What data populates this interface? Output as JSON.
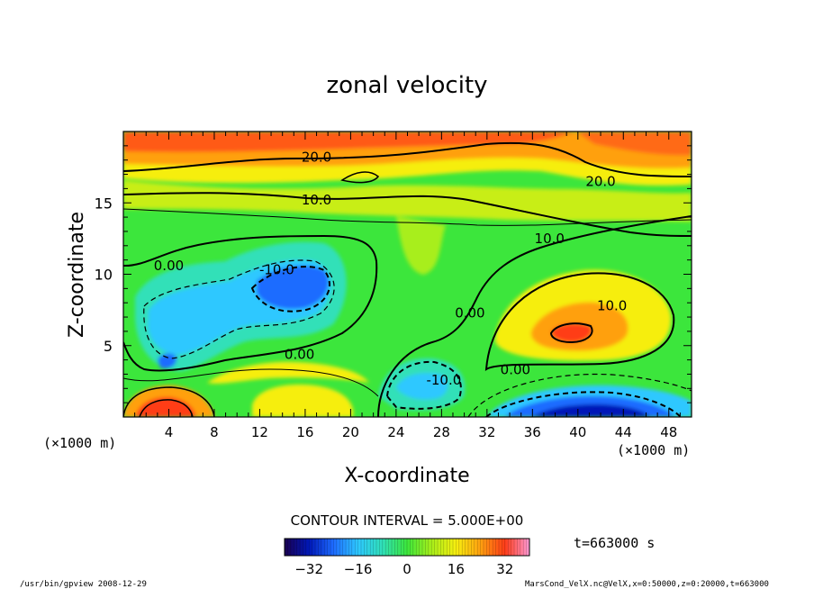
{
  "chart_data": {
    "type": "heatmap",
    "title": "zonal velocity",
    "xlabel": "X-coordinate",
    "ylabel": "Z-coordinate",
    "x_unit_label": "(×1000 m)",
    "z_unit_label": "(×1000 m)",
    "x_ticks": [
      4,
      8,
      12,
      16,
      20,
      24,
      28,
      32,
      36,
      40,
      44,
      48
    ],
    "z_ticks": [
      5,
      10,
      15
    ],
    "xlim": [
      0,
      50
    ],
    "zlim": [
      0,
      20
    ],
    "contour_interval_label": "CONTOUR INTERVAL = 5.000E+00",
    "contour_labels": [
      {
        "text": "20.0",
        "x": 17,
        "z": 18.2
      },
      {
        "text": "20.0",
        "x": 42,
        "z": 16.5
      },
      {
        "text": "10.0",
        "x": 17,
        "z": 15.2
      },
      {
        "text": "10.0",
        "x": 37.5,
        "z": 12.5
      },
      {
        "text": "10.0",
        "x": 43,
        "z": 7.8
      },
      {
        "text": "-10.0",
        "x": 13.5,
        "z": 10.3
      },
      {
        "text": "0.00",
        "x": 4,
        "z": 10.6
      },
      {
        "text": "0.00",
        "x": 15.5,
        "z": 4.4
      },
      {
        "text": "0.00",
        "x": 30.5,
        "z": 7.3
      },
      {
        "text": "0.00",
        "x": 34.5,
        "z": 3.3
      },
      {
        "text": "-10.0",
        "x": 28.2,
        "z": 2.6
      }
    ],
    "field_features": [
      {
        "kind": "max",
        "x": 3.5,
        "z": 0.5,
        "value": 30
      },
      {
        "kind": "max",
        "x": 39.5,
        "z": 6.0,
        "value": 22
      },
      {
        "kind": "max",
        "x": 10,
        "z": 19.5,
        "value": 28
      },
      {
        "kind": "min",
        "x": 15.5,
        "z": 9.5,
        "value": -16
      },
      {
        "kind": "min",
        "x": 4,
        "z": 4,
        "value": -15
      },
      {
        "kind": "min",
        "x": 40,
        "z": 0,
        "value": -32
      },
      {
        "kind": "min",
        "x": 28,
        "z": 2.3,
        "value": -12
      }
    ],
    "colorbar": {
      "ticks": [
        -32,
        -16,
        0,
        16,
        32
      ],
      "range": [
        -40,
        40
      ],
      "colors": [
        "#1a0050",
        "#0018b8",
        "#1e6cff",
        "#2ec8ff",
        "#30e0b8",
        "#3ce63c",
        "#a8ee1a",
        "#f6ee10",
        "#ffa010",
        "#ff3c18",
        "#ff9ad6"
      ]
    }
  },
  "annotations": {
    "time": "t=663000 s",
    "footer_left": "/usr/bin/gpview  2008-12-29",
    "footer_right": "MarsCond_VelX.nc@VelX,x=0:50000,z=0:20000,t=663000"
  }
}
